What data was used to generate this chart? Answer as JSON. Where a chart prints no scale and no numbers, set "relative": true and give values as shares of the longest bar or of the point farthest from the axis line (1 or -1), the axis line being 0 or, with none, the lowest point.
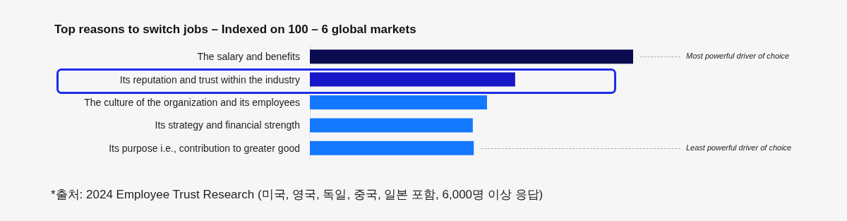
{
  "chart_data": {
    "type": "bar",
    "orientation": "horizontal",
    "relative": true,
    "title": "Top reasons to switch jobs – Indexed on 100 – 6 global markets",
    "categories": [
      "The salary and benefits",
      "Its reputation and trust within the industry",
      "The culture of the organization and its employees",
      "Its strategy and financial strength",
      "Its purpose i.e., contribution to greater good"
    ],
    "values": [
      1,
      0.635,
      0.548,
      0.504,
      0.507
    ],
    "colors": [
      "#0b0b4f",
      "#1717c9",
      "#1478ff",
      "#1478ff",
      "#1478ff"
    ],
    "annotations": [
      "Most powerful driver of choice",
      "Least powerful driver of choice",
      "*출처: 2024 Employee Trust Research (미국, 영국, 독일, 중국, 일본 포함, 6,000명 이상 응답)"
    ]
  }
}
